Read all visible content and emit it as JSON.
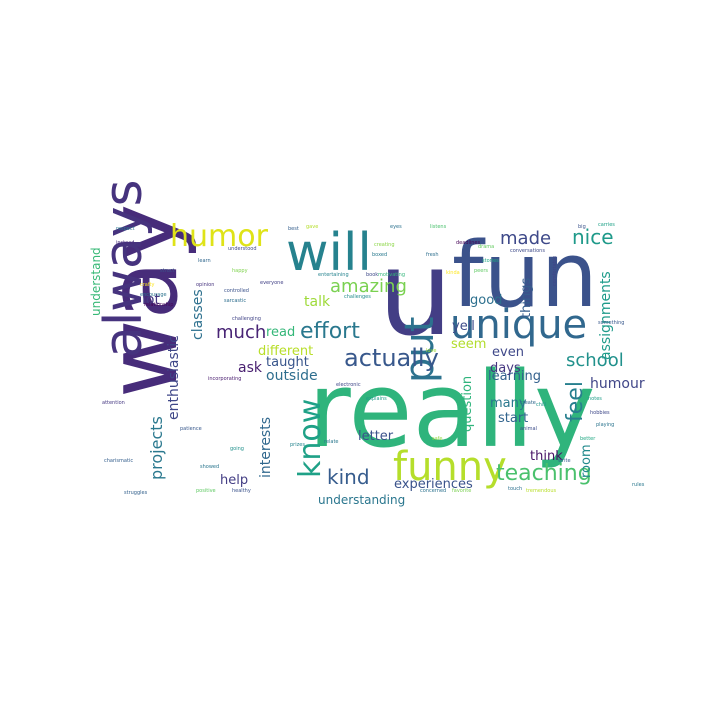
{
  "wordcloud": {
    "background": "#ffffff",
    "words": [
      {
        "text": "really",
        "color": "#2fb47c"
      },
      {
        "text": "way",
        "color": "#472c7a"
      },
      {
        "text": "fun",
        "color": "#3b528b"
      },
      {
        "text": "always",
        "color": "#46337e"
      },
      {
        "text": "u",
        "color": "#433e85"
      },
      {
        "text": "will",
        "color": "#26828e"
      },
      {
        "text": "unique",
        "color": "#31688e"
      },
      {
        "text": "funny",
        "color": "#b5de2b"
      },
      {
        "text": "humor",
        "color": "#dfe318"
      },
      {
        "text": "know",
        "color": "#1fa187"
      },
      {
        "text": "put",
        "color": "#2c728e"
      },
      {
        "text": "actually",
        "color": "#38588c"
      },
      {
        "text": "teaching",
        "color": "#4ac16d"
      },
      {
        "text": "effort",
        "color": "#2a788e"
      },
      {
        "text": "amazing",
        "color": "#7ad151"
      },
      {
        "text": "kind",
        "color": "#365c8d"
      },
      {
        "text": "school",
        "color": "#21918c"
      },
      {
        "text": "nice",
        "color": "#1f9a8a"
      },
      {
        "text": "made",
        "color": "#3e4989"
      },
      {
        "text": "feel",
        "color": "#277f8e"
      },
      {
        "text": "much",
        "color": "#482475"
      },
      {
        "text": "talk",
        "color": "#9fda3a"
      },
      {
        "text": "humour",
        "color": "#404688"
      },
      {
        "text": "assignments",
        "color": "#1e9b8a"
      },
      {
        "text": "projects",
        "color": "#2a788e"
      },
      {
        "text": "enthusiastic",
        "color": "#3f4788"
      },
      {
        "text": "classes",
        "color": "#2d708e"
      },
      {
        "text": "understand",
        "color": "#38b977"
      },
      {
        "text": "lot",
        "color": "#443983"
      },
      {
        "text": "ask",
        "color": "#481f70"
      },
      {
        "text": "read",
        "color": "#35b779"
      },
      {
        "text": "different",
        "color": "#b8de29"
      },
      {
        "text": "outside",
        "color": "#2e6e8e"
      },
      {
        "text": "taught",
        "color": "#39568c"
      },
      {
        "text": "interests",
        "color": "#31688e"
      },
      {
        "text": "letter",
        "color": "#3b528b"
      },
      {
        "text": "experiences",
        "color": "#3a538b"
      },
      {
        "text": "understanding",
        "color": "#2a768e"
      },
      {
        "text": "help",
        "color": "#433d84"
      },
      {
        "text": "learning",
        "color": "#34618d"
      },
      {
        "text": "question",
        "color": "#2fb47c"
      },
      {
        "text": "seem",
        "color": "#b2dd2d"
      },
      {
        "text": "yell",
        "color": "#3e4c8a"
      },
      {
        "text": "good",
        "color": "#2d708e"
      },
      {
        "text": "even",
        "color": "#3f4889"
      },
      {
        "text": "things",
        "color": "#365d8d"
      },
      {
        "text": "many",
        "color": "#2a788e"
      },
      {
        "text": "days",
        "color": "#453781"
      },
      {
        "text": "start",
        "color": "#32648e"
      },
      {
        "text": "think",
        "color": "#471365"
      },
      {
        "text": "room",
        "color": "#238a8d"
      },
      {
        "text": "fresh",
        "color": "#2e6f8e"
      },
      {
        "text": "drama",
        "color": "#63cb5f"
      },
      {
        "text": "deadlines",
        "color": "#440154"
      },
      {
        "text": "conversations",
        "color": "#3e4a89"
      },
      {
        "text": "challenging",
        "color": "#414487"
      },
      {
        "text": "encourage",
        "color": "#2c738e"
      },
      {
        "text": "relationship",
        "color": "#440256"
      },
      {
        "text": "crafty",
        "color": "#fde725"
      },
      {
        "text": "controlled",
        "color": "#3b528b"
      },
      {
        "text": "sarcastic",
        "color": "#2e6e8e"
      },
      {
        "text": "understood",
        "color": "#3e4989"
      },
      {
        "text": "happy",
        "color": "#7fd34e"
      },
      {
        "text": "everyone",
        "color": "#424186"
      },
      {
        "text": "challenges",
        "color": "#228c8d"
      },
      {
        "text": "entertaining",
        "color": "#25838e"
      },
      {
        "text": "creating",
        "color": "#8bd646"
      },
      {
        "text": "motivating",
        "color": "#32b67a"
      },
      {
        "text": "book",
        "color": "#3e4989"
      },
      {
        "text": "boxed",
        "color": "#29798e"
      },
      {
        "text": "kinda",
        "color": "#fde725"
      },
      {
        "text": "peers",
        "color": "#5ec962"
      },
      {
        "text": "stories",
        "color": "#22a884"
      },
      {
        "text": "carries",
        "color": "#1fa187"
      },
      {
        "text": "big",
        "color": "#3b528b"
      },
      {
        "text": "listens",
        "color": "#4ac16d"
      },
      {
        "text": "eyes",
        "color": "#2c728e"
      },
      {
        "text": "best",
        "color": "#355f8d"
      },
      {
        "text": "gave",
        "color": "#b5de2b"
      },
      {
        "text": "respect",
        "color": "#2a788e"
      },
      {
        "text": "instead",
        "color": "#472d7b"
      },
      {
        "text": "learn",
        "color": "#31688e"
      },
      {
        "text": "struct",
        "color": "#3b528b"
      },
      {
        "text": "opinion",
        "color": "#46337e"
      },
      {
        "text": "incorporating",
        "color": "#481c6e"
      },
      {
        "text": "patience",
        "color": "#38588c"
      },
      {
        "text": "showed",
        "color": "#2a768e"
      },
      {
        "text": "positive",
        "color": "#5ec962"
      },
      {
        "text": "healthy",
        "color": "#3b528b"
      },
      {
        "text": "prizes",
        "color": "#25848e"
      },
      {
        "text": "explains",
        "color": "#1e9c89"
      },
      {
        "text": "electronic",
        "color": "#3f4788"
      },
      {
        "text": "relate",
        "color": "#2a788e"
      },
      {
        "text": "concerned",
        "color": "#2c728e"
      },
      {
        "text": "favorite",
        "color": "#7ad151"
      },
      {
        "text": "touch",
        "color": "#2d708e"
      },
      {
        "text": "tremendous",
        "color": "#b8de29"
      },
      {
        "text": "charismatic",
        "color": "#355f8d"
      },
      {
        "text": "struggles",
        "color": "#34618d"
      },
      {
        "text": "attention",
        "color": "#453882"
      },
      {
        "text": "going",
        "color": "#21918c"
      },
      {
        "text": "chill",
        "color": "#1f978b"
      },
      {
        "text": "hobbies",
        "color": "#3f4889"
      },
      {
        "text": "playing",
        "color": "#2b748e"
      },
      {
        "text": "animal",
        "color": "#3d4d8a"
      },
      {
        "text": "safe",
        "color": "#95d840"
      },
      {
        "text": "create",
        "color": "#31688e"
      },
      {
        "text": "write",
        "color": "#365c8d"
      },
      {
        "text": "notes",
        "color": "#1f9e89"
      },
      {
        "text": "better",
        "color": "#22a884"
      },
      {
        "text": "comfortable",
        "color": "#414487"
      },
      {
        "text": "something",
        "color": "#38588c"
      },
      {
        "text": "rules",
        "color": "#2a788e"
      },
      {
        "text": "love",
        "color": "#9fda3a"
      }
    ]
  }
}
